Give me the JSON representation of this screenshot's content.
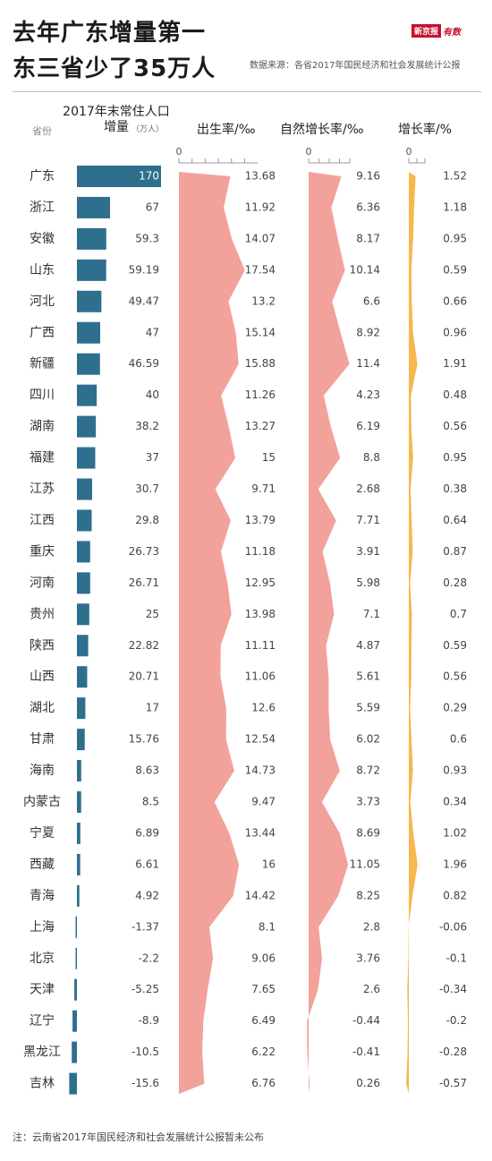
{
  "header": {
    "title_line1": "去年广东增量第一",
    "title_line2": "东三省少了35万人",
    "logo_brand": "新京报",
    "logo_sub": "有数",
    "source": "数据来源：各省2017年国民经济和社会发展统计公报"
  },
  "footnote": "注：云南省2017年国民经济和社会发展统计公报暂未公布",
  "chart_data": {
    "type": "table",
    "columns": {
      "province": "省份",
      "increase": "2017年末常住人口增量",
      "increase_unit": "（万人）",
      "birth": "出生率/‰",
      "natural": "自然增长率/‰",
      "growth": "增长率/%"
    },
    "axis_zero_labels": [
      "0",
      "0",
      "0"
    ],
    "provinces": [
      "广东",
      "浙江",
      "安徽",
      "山东",
      "河北",
      "广西",
      "新疆",
      "四川",
      "湖南",
      "福建",
      "江苏",
      "江西",
      "重庆",
      "河南",
      "贵州",
      "陕西",
      "山西",
      "湖北",
      "甘肃",
      "海南",
      "内蒙古",
      "宁夏",
      "西藏",
      "青海",
      "上海",
      "北京",
      "天津",
      "辽宁",
      "黑龙江",
      "吉林"
    ],
    "increase": [
      170,
      67,
      59.3,
      59.19,
      49.47,
      47,
      46.59,
      40,
      38.2,
      37,
      30.7,
      29.8,
      26.73,
      26.71,
      25,
      22.82,
      20.71,
      17,
      15.76,
      8.63,
      8.5,
      6.89,
      6.61,
      4.92,
      -1.37,
      -2.2,
      -5.25,
      -8.9,
      -10.5,
      -15.6
    ],
    "birth_rate": [
      13.68,
      11.92,
      14.07,
      17.54,
      13.2,
      15.14,
      15.88,
      11.26,
      13.27,
      15,
      9.71,
      13.79,
      11.18,
      12.95,
      13.98,
      11.11,
      11.06,
      12.6,
      12.54,
      14.73,
      9.47,
      13.44,
      16,
      14.42,
      8.1,
      9.06,
      7.65,
      6.49,
      6.22,
      6.76
    ],
    "natural_rate": [
      9.16,
      6.36,
      8.17,
      10.14,
      6.6,
      8.92,
      11.4,
      4.23,
      6.19,
      8.8,
      2.68,
      7.71,
      3.91,
      5.98,
      7.1,
      4.87,
      5.61,
      5.59,
      6.02,
      8.72,
      3.73,
      8.69,
      11.05,
      8.25,
      2.8,
      3.76,
      2.6,
      -0.44,
      -0.41,
      0.26
    ],
    "growth_rate": [
      1.52,
      1.18,
      0.95,
      0.59,
      0.66,
      0.96,
      1.91,
      0.48,
      0.56,
      0.95,
      0.38,
      0.64,
      0.87,
      0.28,
      0.7,
      0.59,
      0.56,
      0.29,
      0.6,
      0.93,
      0.34,
      1.02,
      1.96,
      0.82,
      -0.06,
      -0.1,
      -0.34,
      -0.2,
      -0.28,
      -0.57
    ],
    "colors": {
      "bar": "#2e6f8e",
      "bar_highlight_text": "#ffffff",
      "birth_area": "#f2a19b",
      "natural_area": "#f2a19b",
      "growth_area": "#f6b84d",
      "value_text": "#444444",
      "province_text": "#333333"
    }
  }
}
